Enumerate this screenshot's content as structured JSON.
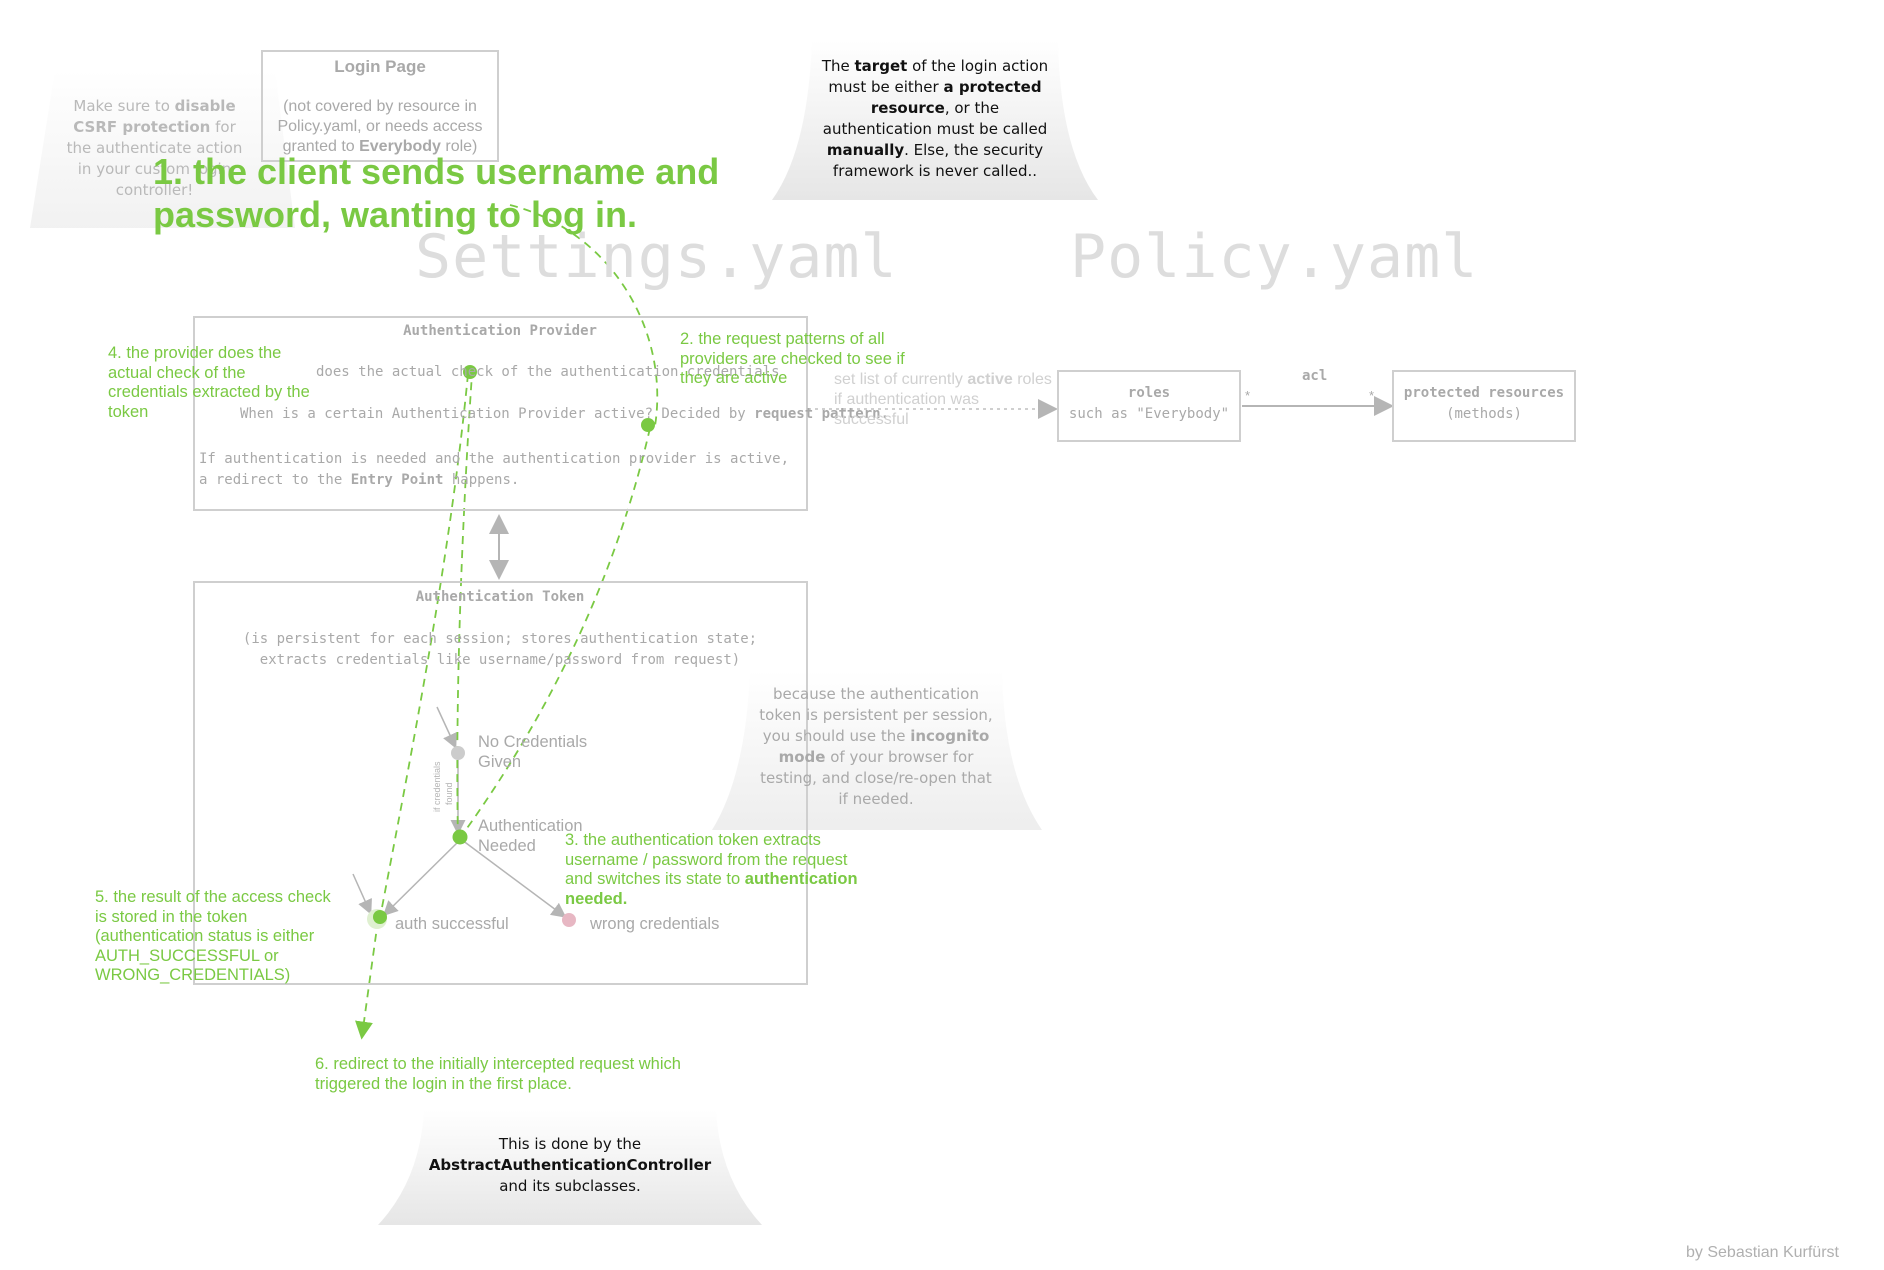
{
  "headings": {
    "settings": "Settings.yaml",
    "policy": "Policy.yaml",
    "step1": "1. the client sends username and password, wanting to log in."
  },
  "login_page": {
    "title": "Login Page",
    "body_1": "(not covered by resource in Policy.yaml, or needs access granted to ",
    "body_bold": "Everybody",
    "body_2": " role)"
  },
  "csrf_note": {
    "t1": "Make sure to ",
    "b1": "disable",
    "b2": "CSRF protection",
    "t2": " for the authenticate action in your custom login controller!"
  },
  "target_note": {
    "t1": "The ",
    "b1": "target",
    "t2": " of the login action must be either ",
    "b2": "a protected resource",
    "t3": ", or the authentication must be called ",
    "b3": "manually",
    "t4": ". Else, the security framework is never called.."
  },
  "auth_provider": {
    "title": "Authentication Provider",
    "line1": "does the actual check of the authentication credentials",
    "line2a": "When is a certain Authentication Provider active? Decided by ",
    "line2b": "request pattern.",
    "line3a": "If authentication is needed and the authentication provider is active, a redirect to the ",
    "line3b": "Entry Point",
    "line3c": " happens."
  },
  "auth_token": {
    "title": "Authentication Token",
    "desc": "(is persistent for each session; stores authentication state; extracts credentials like username/password from request)",
    "states": {
      "no_credentials": "No Credentials Given",
      "auth_needed": "Authentication Needed",
      "auth_successful": "auth successful",
      "wrong_credentials": "wrong credentials",
      "transition": "if credentials found"
    }
  },
  "incognito_note": {
    "t1": "because the authentication token is persistent per session, you should use the ",
    "b1": "incognito mode",
    "t2": " of your browser for testing, and close/re-open that if needed."
  },
  "roles_link": {
    "t1": "set list of currently ",
    "b1": "active",
    "t2": " roles if authentication was successful"
  },
  "roles_box": {
    "title": "roles",
    "sub": "such as \"Everybody\""
  },
  "acl": {
    "label": "acl",
    "left_mult": "*",
    "right_mult": "*"
  },
  "resources_box": {
    "title": "protected resources",
    "sub": "(methods)"
  },
  "steps": {
    "step2": "2. the request patterns of all providers are checked to see if they are active",
    "step3a": "3. the authentication token extracts username / password from the request and switches its state to ",
    "step3b": "authentication needed.",
    "step4": "4. the provider does the actual check of the credentials extracted by the token",
    "step5": "5. the result of the access check is stored in the token (authentication status is either AUTH_SUCCESSFUL or WRONG_CREDENTIALS)",
    "step6": "6. redirect to the initially intercepted request which triggered the login in the first place."
  },
  "abstract_note": {
    "t1": "This is done by the ",
    "b1": "AbstractAuthenticationController",
    "t2": " and its subclasses."
  },
  "footer": "by Sebastian Kurfürst",
  "colors": {
    "green": "#7ac943",
    "gray_text": "#a9a9a9",
    "box_border": "#cfcfcf",
    "title_gray": "#dddddd",
    "wrong_dot": "#e7b7c3",
    "note_fill": "#ececec"
  }
}
